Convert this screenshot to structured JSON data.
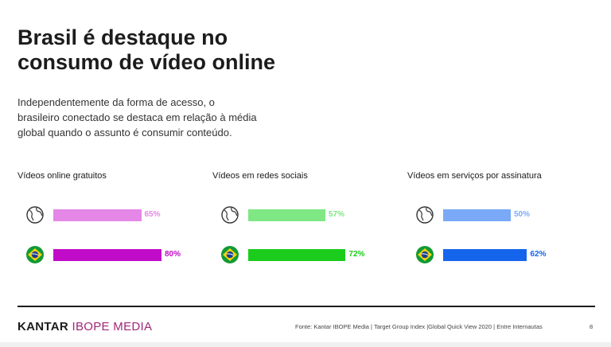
{
  "title_lines": [
    "Brasil é destaque no",
    "consumo de vídeo online"
  ],
  "subtitle_lines": [
    "Independentemente da forma de acesso, o",
    "brasileiro conectado se destaca em relação à média",
    "global quando o assunto é consumir conteúdo."
  ],
  "chart_data": [
    {
      "type": "bar",
      "title": "Vídeos online gratuitos",
      "categories": [
        "globe-icon",
        "brazil-flag-icon"
      ],
      "values": [
        65,
        80
      ],
      "value_labels": [
        "65%",
        "80%"
      ],
      "colors": [
        "#e487e6",
        "#c00bc8"
      ],
      "xlim": [
        0,
        100
      ]
    },
    {
      "type": "bar",
      "title": "Vídeos em redes sociais",
      "categories": [
        "globe-icon",
        "brazil-flag-icon"
      ],
      "values": [
        57,
        72
      ],
      "value_labels": [
        "57%",
        "72%"
      ],
      "colors": [
        "#7fe784",
        "#1ccc1c"
      ],
      "xlim": [
        0,
        100
      ]
    },
    {
      "type": "bar",
      "title": "Vídeos em serviços por assinatura",
      "categories": [
        "globe-icon",
        "brazil-flag-icon"
      ],
      "values": [
        50,
        62
      ],
      "value_labels": [
        "50%",
        "62%"
      ],
      "colors": [
        "#7aaaf7",
        "#1565ec"
      ],
      "xlim": [
        0,
        100
      ]
    }
  ],
  "footer": {
    "logo_kantar": "KANTAR",
    "logo_ibope": "IBOPE MEDIA",
    "source": "Fonte: Kantar IBOPE Media | Target Group Index |Global Quick View 2020 | Entre Internautas",
    "page_number": "8"
  }
}
